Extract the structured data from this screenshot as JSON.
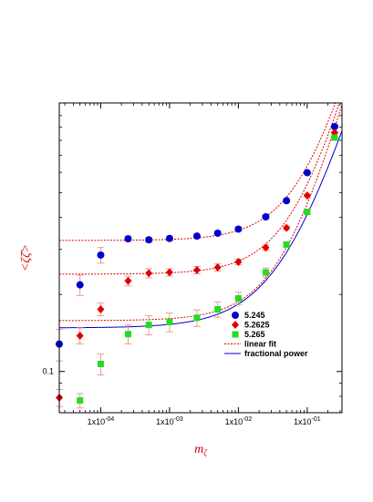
{
  "chart_data": {
    "type": "scatter",
    "xscale": "log",
    "yscale": "log",
    "xlim": [
      2.5e-05,
      0.32
    ],
    "ylim": [
      0.069,
      1.12
    ],
    "xlabel": "m_ζ",
    "ylabel": "<ζζ̄>",
    "x_ticks": [
      {
        "value": 0.0001,
        "label": "1x10^-04"
      },
      {
        "value": 0.001,
        "label": "1x10^-03"
      },
      {
        "value": 0.01,
        "label": "1x10^-02"
      },
      {
        "value": 0.1,
        "label": "1x10^-01"
      }
    ],
    "y_ticks": [
      {
        "value": 0.1,
        "label": "0.1"
      }
    ],
    "legend_position": "bottom-right",
    "series": [
      {
        "name": "5.245",
        "color": "#0000cc",
        "marker": "circle",
        "points": [
          {
            "x": 2.5e-05,
            "y": 0.128,
            "err": 0.018
          },
          {
            "x": 5e-05,
            "y": 0.218,
            "err": 0.02
          },
          {
            "x": 0.0001,
            "y": 0.285,
            "err": 0.02
          },
          {
            "x": 0.00025,
            "y": 0.33,
            "err": 0.008
          },
          {
            "x": 0.0005,
            "y": 0.327,
            "err": 0.008
          },
          {
            "x": 0.001,
            "y": 0.331,
            "err": 0.007
          },
          {
            "x": 0.0025,
            "y": 0.338,
            "err": 0.006
          },
          {
            "x": 0.005,
            "y": 0.347,
            "err": 0.006
          },
          {
            "x": 0.01,
            "y": 0.36,
            "err": 0.006
          },
          {
            "x": 0.025,
            "y": 0.402,
            "err": 0.005
          },
          {
            "x": 0.05,
            "y": 0.465,
            "err": 0.005
          },
          {
            "x": 0.1,
            "y": 0.598,
            "err": 0.005
          },
          {
            "x": 0.25,
            "y": 0.905,
            "err": 0.005
          }
        ]
      },
      {
        "name": "5.2625",
        "color": "#e00000",
        "marker": "diamond",
        "points": [
          {
            "x": 2.5e-05,
            "y": 0.079,
            "err": 0.006
          },
          {
            "x": 5e-05,
            "y": 0.138,
            "err": 0.01
          },
          {
            "x": 0.0001,
            "y": 0.175,
            "err": 0.01
          },
          {
            "x": 0.00025,
            "y": 0.226,
            "err": 0.01
          },
          {
            "x": 0.0005,
            "y": 0.242,
            "err": 0.01
          },
          {
            "x": 0.001,
            "y": 0.244,
            "err": 0.008
          },
          {
            "x": 0.0025,
            "y": 0.249,
            "err": 0.008
          },
          {
            "x": 0.005,
            "y": 0.255,
            "err": 0.008
          },
          {
            "x": 0.01,
            "y": 0.268,
            "err": 0.007
          },
          {
            "x": 0.025,
            "y": 0.305,
            "err": 0.007
          },
          {
            "x": 0.05,
            "y": 0.364,
            "err": 0.006
          },
          {
            "x": 0.1,
            "y": 0.487,
            "err": 0.006
          },
          {
            "x": 0.25,
            "y": 0.858,
            "err": 0.006
          }
        ]
      },
      {
        "name": "5.265",
        "color": "#22dd22",
        "marker": "square",
        "points": [
          {
            "x": 5e-05,
            "y": 0.077,
            "err": 0.005
          },
          {
            "x": 0.0001,
            "y": 0.107,
            "err": 0.01
          },
          {
            "x": 0.00025,
            "y": 0.14,
            "err": 0.012
          },
          {
            "x": 0.0005,
            "y": 0.152,
            "err": 0.013
          },
          {
            "x": 0.001,
            "y": 0.156,
            "err": 0.013
          },
          {
            "x": 0.0025,
            "y": 0.162,
            "err": 0.012
          },
          {
            "x": 0.005,
            "y": 0.175,
            "err": 0.012
          },
          {
            "x": 0.01,
            "y": 0.193,
            "err": 0.011
          },
          {
            "x": 0.025,
            "y": 0.244,
            "err": 0.01
          },
          {
            "x": 0.05,
            "y": 0.313,
            "err": 0.008
          },
          {
            "x": 0.1,
            "y": 0.42,
            "err": 0.007
          },
          {
            "x": 0.25,
            "y": 0.82,
            "err": 0.006
          }
        ]
      }
    ],
    "fits": [
      {
        "name": "linear fit",
        "color": "#e00000",
        "style": "dotted",
        "curves": [
          {
            "a": 0.325,
            "b": 3.1
          },
          {
            "a": 0.24,
            "b": 3.0
          },
          {
            "a": 0.158,
            "b": 2.95
          }
        ]
      },
      {
        "name": "fractional power",
        "color": "#0000cc",
        "style": "solid",
        "curves": [
          {
            "a": 0.148,
            "b": 1.95,
            "p": 0.87
          }
        ]
      }
    ]
  }
}
